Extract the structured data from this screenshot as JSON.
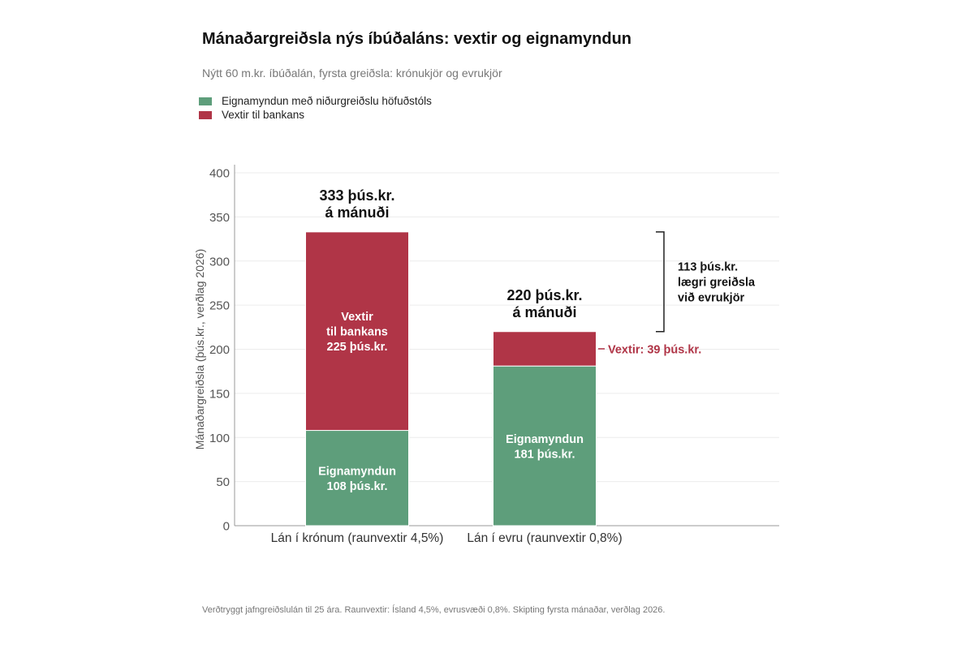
{
  "title": "Mánaðargreiðsla nýs íbúðaláns: vextir og eignamyndun",
  "subtitle": "Nýtt 60 m.kr. íbúðalán, fyrsta greiðsla: krónukjör og evrukjör",
  "footnote": "Verðtryggt jafngreiðslulán til 25 ára. Raunvextir: Ísland 4,5%, evrusvæði 0,8%. Skipting fyrsta mánaðar, verðlag 2026.",
  "colors": {
    "principal": "#5e9e7b",
    "interest": "#b03547",
    "grid": "#ececec",
    "axis": "#999999"
  },
  "legend": [
    {
      "label": "Eignamyndun með niðurgreiðslu höfuðstóls",
      "color": "#5e9e7b"
    },
    {
      "label": "Vextir til bankans",
      "color": "#b03547"
    }
  ],
  "chart_data": {
    "type": "bar",
    "stacked": true,
    "categories": [
      "Lán í krónum (raunvextir 4,5%)",
      "Lán í evru (raunvextir 0,8%)"
    ],
    "series": [
      {
        "name": "Eignamyndun með niðurgreiðslu höfuðstóls",
        "values": [
          108,
          181
        ],
        "color": "#5e9e7b"
      },
      {
        "name": "Vextir til bankans",
        "values": [
          225,
          39
        ],
        "color": "#b03547"
      }
    ],
    "totals": [
      333,
      220
    ],
    "ylabel": "Mánaðargreiðsla (þús.kr., verðlag 2026)",
    "ylim": [
      0,
      400
    ],
    "yticks": [
      0,
      50,
      100,
      150,
      200,
      250,
      300,
      350,
      400
    ],
    "grid": true,
    "legend_position": "top-left",
    "segment_labels": [
      [
        [
          "Eignamyndun",
          "108 þús.kr."
        ],
        [
          "Vextir",
          "til bankans",
          "225 þús.kr."
        ]
      ],
      [
        [
          "Eignamyndun",
          "181 þús.kr."
        ],
        []
      ]
    ],
    "total_labels": [
      [
        "333 þús.kr.",
        "á mánuði"
      ],
      [
        "220 þús.kr.",
        "á mánuði"
      ]
    ],
    "annotations": {
      "interest_callout": "Vextir: 39 þús.kr.",
      "difference": [
        "113 þús.kr.",
        "lægri greiðsla",
        "við evrukjör"
      ]
    }
  }
}
